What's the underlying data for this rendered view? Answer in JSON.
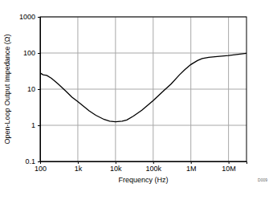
{
  "chart_data": {
    "type": "line",
    "x_label": "Frequency (Hz)",
    "y_label": "Open-Loop Output Impedance (Ω)",
    "annotations": [
      "D009"
    ],
    "log": true,
    "grid": true,
    "color": "#000000",
    "xlim": [
      100,
      30000000
    ],
    "ylim": [
      0.1,
      1000
    ],
    "xticks": [
      100,
      {
        "value": 1000,
        "label": "1k"
      },
      {
        "value": 10000,
        "label": "10k"
      },
      {
        "value": 100000,
        "label": "100k"
      },
      {
        "value": 1000000,
        "label": "1M"
      },
      {
        "value": 10000000,
        "label": "10M"
      }
    ],
    "yticks": [
      0.1,
      1,
      10,
      100,
      1000
    ],
    "x": [
      100,
      120,
      150,
      200,
      300,
      500,
      700,
      1000,
      2000,
      3000,
      5000,
      7000,
      10000,
      15000,
      20000,
      30000,
      50000,
      100000,
      200000,
      300000,
      500000,
      700000,
      1000000,
      1500000,
      2000000,
      3000000,
      5000000,
      10000000,
      20000000,
      30000000
    ],
    "values": [
      28,
      25,
      24,
      20,
      14,
      8.5,
      6,
      4.5,
      2.5,
      1.9,
      1.45,
      1.3,
      1.25,
      1.3,
      1.4,
      1.8,
      2.6,
      4.8,
      9.5,
      14,
      25,
      35,
      48,
      62,
      70,
      76,
      80,
      85,
      93,
      98
    ]
  }
}
